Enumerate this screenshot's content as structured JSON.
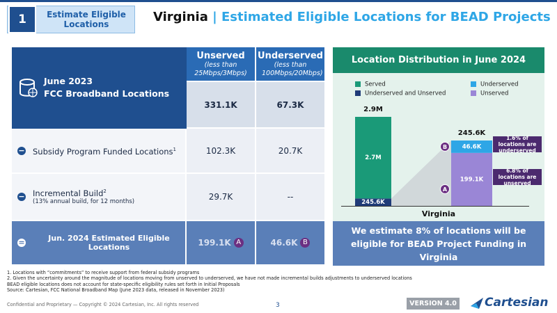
{
  "header": {
    "step": "1",
    "section": "Estimate Eligible Locations",
    "region": "Virginia",
    "separator": "|",
    "title": "Estimated Eligible Locations for BEAD Projects"
  },
  "table": {
    "corner": [
      "June 2023",
      "FCC Broadband Locations"
    ],
    "columns": [
      {
        "name": "Unserved",
        "note": "(less than 25Mbps/3Mbps)"
      },
      {
        "name": "Underserved",
        "note": "(less than 100Mbps/20Mbps)"
      }
    ],
    "baseline": [
      "331.1K",
      "67.3K"
    ],
    "rows": [
      {
        "label": "Subsidy Program Funded Locations",
        "sup": "1",
        "values": [
          "102.3K",
          "20.7K"
        ]
      },
      {
        "label": "Incremental Build",
        "sup": "2",
        "note": "(13% annual build, for 12 months)",
        "values": [
          "29.7K",
          "--"
        ]
      }
    ],
    "total": {
      "label": "Jun. 2024 Estimated Eligible Locations",
      "values": [
        "199.1K",
        "46.6K"
      ],
      "markers": [
        "A",
        "B"
      ]
    }
  },
  "chart_data": {
    "type": "bar",
    "title": "Location Distribution in June 2024",
    "xlabel": "Virginia",
    "categories": [
      null,
      null
    ],
    "series": [
      {
        "name": "Served",
        "color": "#1a9a78",
        "values": [
          2700000,
          null
        ],
        "value_labels": [
          "2.7M",
          null
        ]
      },
      {
        "name": "Underserved",
        "color": "#2ea6e6",
        "values": [
          null,
          46600
        ],
        "value_labels": [
          null,
          "46.6K"
        ],
        "marker": "B"
      },
      {
        "name": "Underserved and Unserved",
        "color": "#1f3b78",
        "values": [
          245600,
          null
        ],
        "value_labels": [
          "245.6K",
          null
        ]
      },
      {
        "name": "Unserved",
        "color": "#9a86d6",
        "values": [
          null,
          199100
        ],
        "value_labels": [
          null,
          "199.1K"
        ],
        "marker": "A"
      }
    ],
    "total_labels": [
      "2.9M",
      "245.6K"
    ],
    "annotations": [
      "1.6% of locations are underserved",
      "6.8% of locations are unserved"
    ],
    "conclusion": "We estimate 8% of locations will be eligible for BEAD Project Funding in Virginia"
  },
  "footnotes": [
    "1. Locations with “commitments” to receive support from federal subsidy programs",
    "2. Given the uncertainty around the magnitude of locations moving from unserved to underserved, we have not made incremental builds adjustments to underserved locations",
    "BEAD eligible locations does not account for state-specific eligibility rules set forth in Initial Proposals",
    "Source: Cartesian, FCC National Broadband Map (June 2023 data, released in November 2023)"
  ],
  "footer": {
    "confidential": "Confidential and Proprietary — Copyright © 2024 Cartesian, Inc. All rights reserved",
    "page": "3",
    "version": "VERSION 4.0",
    "logo": "Cartesian"
  }
}
